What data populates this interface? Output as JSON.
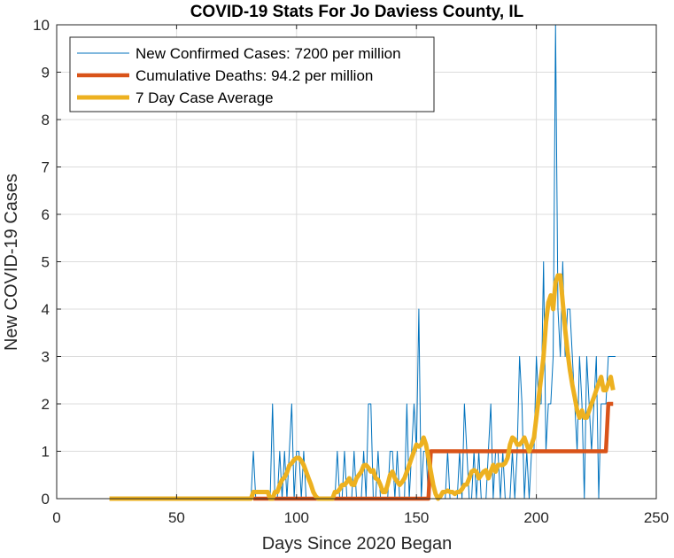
{
  "chart_data": {
    "type": "line",
    "title": "COVID-19 Stats For Jo Daviess County, IL",
    "xlabel": "Days Since 2020 Began",
    "ylabel": "New COVID-19 Cases",
    "xlim": [
      0,
      250
    ],
    "ylim": [
      0,
      10
    ],
    "xticks": [
      0,
      50,
      100,
      150,
      200,
      250
    ],
    "yticks": [
      0,
      1,
      2,
      3,
      4,
      5,
      6,
      7,
      8,
      9,
      10
    ],
    "grid": true,
    "legend_position": "top-left",
    "series": [
      {
        "name": "New Confirmed Cases: 7200 per million",
        "color": "#0072BD",
        "line_width": 1,
        "x": [
          22,
          80,
          81,
          82,
          83,
          89,
          90,
          91,
          92,
          93,
          94,
          95,
          96,
          97,
          98,
          99,
          100,
          101,
          102,
          103,
          104,
          105,
          106,
          107,
          108,
          115,
          116,
          117,
          118,
          119,
          120,
          121,
          122,
          123,
          124,
          125,
          126,
          127,
          128,
          129,
          130,
          131,
          132,
          133,
          134,
          135,
          136,
          137,
          138,
          139,
          140,
          141,
          142,
          143,
          144,
          145,
          146,
          147,
          148,
          149,
          150,
          151,
          152,
          153,
          154,
          155,
          156,
          157,
          158,
          159,
          160,
          161,
          162,
          163,
          164,
          165,
          166,
          167,
          168,
          169,
          170,
          171,
          172,
          173,
          174,
          175,
          176,
          177,
          178,
          179,
          180,
          181,
          182,
          183,
          184,
          185,
          186,
          187,
          188,
          189,
          190,
          191,
          192,
          193,
          194,
          195,
          196,
          197,
          198,
          199,
          200,
          201,
          202,
          203,
          204,
          205,
          206,
          207,
          208,
          209,
          210,
          211,
          212,
          213,
          214,
          215,
          216,
          217,
          218,
          219,
          220,
          221,
          222,
          223,
          224,
          225,
          226,
          227,
          228,
          229,
          230,
          231,
          232,
          233
        ],
        "y": [
          0,
          0,
          0,
          1,
          0,
          0,
          2,
          0,
          0,
          1,
          0,
          1,
          0,
          1,
          2,
          0,
          1,
          1,
          0,
          1,
          0,
          0,
          0,
          0,
          0,
          0,
          0,
          1,
          0,
          0,
          1,
          0,
          0,
          0,
          1,
          0,
          0,
          0,
          1,
          0,
          2,
          2,
          0,
          0,
          1,
          0,
          0,
          0,
          0,
          1,
          1,
          0,
          1,
          0,
          0,
          0,
          2,
          0,
          1,
          2,
          1,
          4,
          0,
          1,
          1,
          0,
          0,
          0,
          0,
          0,
          0,
          0,
          0,
          1,
          0,
          0,
          0,
          0,
          1,
          0,
          2,
          1,
          0,
          0,
          1,
          0,
          1,
          0,
          0,
          0,
          1,
          2,
          0,
          1,
          1,
          0,
          1,
          0,
          0,
          0,
          1,
          0,
          1,
          3,
          2,
          0,
          1,
          0,
          1,
          1,
          3,
          2,
          2,
          5,
          1,
          2,
          2,
          3,
          10,
          4,
          3,
          5,
          3,
          4,
          4,
          3,
          2,
          1,
          3,
          2,
          0,
          3,
          2,
          1,
          2,
          3,
          0,
          2,
          2,
          2,
          3,
          3,
          3,
          3
        ],
        "rendered_samples": 144
      },
      {
        "name": "Cumulative Deaths: 94.2 per million",
        "color": "#D95319",
        "line_width": 4.5,
        "x": [
          82,
          155,
          156,
          229,
          230,
          232
        ],
        "y": [
          0,
          0,
          1,
          1,
          2,
          2
        ]
      },
      {
        "name": "7 Day Case Average",
        "color": "#EDB120",
        "line_width": 5,
        "x": [
          22,
          80,
          81,
          82,
          84,
          86,
          88,
          89,
          90,
          91,
          92,
          93,
          94,
          95,
          96,
          97,
          98,
          99,
          100,
          101,
          102,
          103,
          104,
          105,
          106,
          107,
          108,
          109,
          110,
          114,
          115,
          116,
          117,
          118,
          119,
          120,
          121,
          122,
          123,
          124,
          125,
          126,
          127,
          128,
          129,
          130,
          131,
          132,
          133,
          134,
          135,
          136,
          137,
          138,
          139,
          140,
          141,
          142,
          143,
          144,
          145,
          146,
          147,
          148,
          149,
          150,
          151,
          152,
          153,
          154,
          155,
          156,
          157,
          158,
          159,
          160,
          161,
          162,
          163,
          164,
          165,
          166,
          167,
          168,
          169,
          170,
          171,
          172,
          173,
          174,
          175,
          176,
          177,
          178,
          179,
          180,
          181,
          182,
          183,
          184,
          185,
          186,
          187,
          188,
          189,
          190,
          191,
          192,
          193,
          194,
          195,
          196,
          197,
          198,
          199,
          200,
          201,
          202,
          203,
          204,
          205,
          206,
          207,
          208,
          209,
          210,
          211,
          212,
          213,
          214,
          215,
          216,
          217,
          218,
          219,
          220,
          221,
          222,
          223,
          224,
          225,
          226,
          227,
          228,
          229,
          230,
          231,
          232
        ],
        "y": [
          0,
          0,
          0,
          0.14,
          0.14,
          0.14,
          0.14,
          0,
          0,
          0.14,
          0.14,
          0.29,
          0.4,
          0.45,
          0.55,
          0.7,
          0.75,
          0.82,
          0.86,
          0.86,
          0.8,
          0.71,
          0.57,
          0.43,
          0.3,
          0.14,
          0.05,
          0,
          0,
          0,
          0,
          0.14,
          0.14,
          0.2,
          0.29,
          0.29,
          0.35,
          0.43,
          0.3,
          0.29,
          0.43,
          0.5,
          0.57,
          0.7,
          0.71,
          0.65,
          0.57,
          0.6,
          0.43,
          0.4,
          0.29,
          0.14,
          0.14,
          0.3,
          0.5,
          0.57,
          0.43,
          0.36,
          0.29,
          0.35,
          0.43,
          0.57,
          0.71,
          0.86,
          1,
          1.14,
          1.1,
          1.14,
          1.29,
          1.14,
          0.86,
          0.57,
          0.29,
          0.1,
          0,
          0.05,
          0.14,
          0.14,
          0.17,
          0.14,
          0.14,
          0.1,
          0.14,
          0.14,
          0.2,
          0.29,
          0.3,
          0.43,
          0.57,
          0.6,
          0.57,
          0.43,
          0.5,
          0.57,
          0.6,
          0.43,
          0.57,
          0.71,
          0.57,
          0.71,
          0.71,
          0.71,
          0.75,
          0.86,
          1.14,
          1.29,
          1.25,
          1.14,
          1.14,
          1.2,
          1.29,
          1.14,
          1,
          1.14,
          1.29,
          1.71,
          2.14,
          2.57,
          3,
          3.71,
          4.14,
          4.29,
          4,
          4.57,
          4.71,
          4.71,
          4.14,
          3.57,
          3.1,
          2.71,
          2.4,
          2.14,
          1.86,
          1.71,
          1.86,
          1.71,
          1.71,
          1.86,
          2,
          2.14,
          2.29,
          2.43,
          2.57,
          2.29,
          2.29,
          2.43,
          2.57,
          2.29
        ]
      }
    ],
    "legend": [
      "New Confirmed Cases: 7200 per million",
      "Cumulative Deaths: 94.2 per million",
      "7 Day Case Average"
    ]
  }
}
